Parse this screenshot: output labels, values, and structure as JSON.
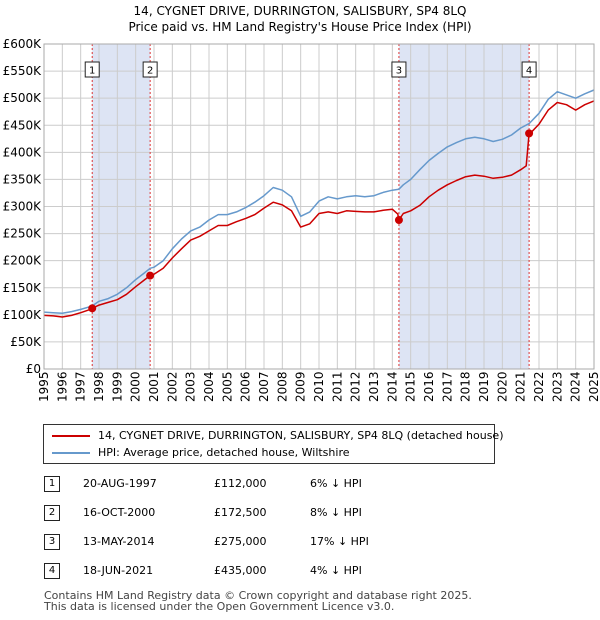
{
  "title": {
    "line1": "14, CYGNET DRIVE, DURRINGTON, SALISBURY, SP4 8LQ",
    "line2": "Price paid vs. HM Land Registry's House Price Index (HPI)"
  },
  "colors": {
    "property": "#cc0000",
    "hpi": "#6699cc",
    "shade": "#dde4f4",
    "vline": "#dd3333",
    "grid": "#cccccc"
  },
  "legend": {
    "property_label": "14, CYGNET DRIVE, DURRINGTON, SALISBURY, SP4 8LQ (detached house)",
    "hpi_label": "HPI: Average price, detached house, Wiltshire"
  },
  "transactions": [
    {
      "num": "1",
      "date": "20-AUG-1997",
      "price": "£112,000",
      "hpi": "6% ↓ HPI"
    },
    {
      "num": "2",
      "date": "16-OCT-2000",
      "price": "£172,500",
      "hpi": "8% ↓ HPI"
    },
    {
      "num": "3",
      "date": "13-MAY-2014",
      "price": "£275,000",
      "hpi": "17% ↓ HPI"
    },
    {
      "num": "4",
      "date": "18-JUN-2021",
      "price": "£435,000",
      "hpi": "4% ↓ HPI"
    }
  ],
  "footer": {
    "line1": "Contains HM Land Registry data © Crown copyright and database right 2025.",
    "line2": "This data is licensed under the Open Government Licence v3.0."
  },
  "chart_data": {
    "type": "line",
    "title": "14, CYGNET DRIVE, DURRINGTON, SALISBURY, SP4 8LQ — Price paid vs. HM Land Registry's House Price Index (HPI)",
    "xlim": [
      1995,
      2025
    ],
    "ylim": [
      0,
      600000
    ],
    "x_ticks": [
      "1995",
      "1996",
      "1997",
      "1998",
      "1999",
      "2000",
      "2001",
      "2002",
      "2003",
      "2004",
      "2005",
      "2006",
      "2007",
      "2008",
      "2009",
      "2010",
      "2011",
      "2012",
      "2013",
      "2014",
      "2015",
      "2016",
      "2017",
      "2018",
      "2019",
      "2020",
      "2021",
      "2022",
      "2023",
      "2024",
      "2025"
    ],
    "y_ticks": [
      {
        "value": 0,
        "label": "£0"
      },
      {
        "value": 50000,
        "label": "£50K"
      },
      {
        "value": 100000,
        "label": "£100K"
      },
      {
        "value": 150000,
        "label": "£150K"
      },
      {
        "value": 200000,
        "label": "£200K"
      },
      {
        "value": 250000,
        "label": "£250K"
      },
      {
        "value": 300000,
        "label": "£300K"
      },
      {
        "value": 350000,
        "label": "£350K"
      },
      {
        "value": 400000,
        "label": "£400K"
      },
      {
        "value": 450000,
        "label": "£450K"
      },
      {
        "value": 500000,
        "label": "£500K"
      },
      {
        "value": 550000,
        "label": "£550K"
      },
      {
        "value": 600000,
        "label": "£600K"
      }
    ],
    "shaded_ranges": [
      [
        1997.63,
        2000.79
      ],
      [
        2014.36,
        2021.46
      ]
    ],
    "sales": [
      {
        "label": "1",
        "x": 1997.63,
        "y": 112000
      },
      {
        "label": "2",
        "x": 2000.79,
        "y": 172500
      },
      {
        "label": "3",
        "x": 2014.36,
        "y": 275000
      },
      {
        "label": "4",
        "x": 2021.46,
        "y": 435000
      }
    ],
    "series": [
      {
        "name": "14, CYGNET DRIVE, DURRINGTON, SALISBURY, SP4 8LQ (detached house)",
        "points": [
          [
            1995,
            99000
          ],
          [
            1995.5,
            98000
          ],
          [
            1996,
            96000
          ],
          [
            1996.5,
            99000
          ],
          [
            1997,
            104000
          ],
          [
            1997.6,
            111000
          ],
          [
            1997.63,
            112000
          ],
          [
            1998,
            118000
          ],
          [
            1998.5,
            123000
          ],
          [
            1999,
            128000
          ],
          [
            1999.5,
            138000
          ],
          [
            2000,
            152000
          ],
          [
            2000.5,
            165000
          ],
          [
            2000.79,
            172500
          ],
          [
            2001,
            175000
          ],
          [
            2001.5,
            186000
          ],
          [
            2002,
            205000
          ],
          [
            2002.5,
            222000
          ],
          [
            2003,
            238000
          ],
          [
            2003.5,
            245000
          ],
          [
            2004,
            255000
          ],
          [
            2004.5,
            265000
          ],
          [
            2005,
            265000
          ],
          [
            2005.5,
            272000
          ],
          [
            2006,
            278000
          ],
          [
            2006.5,
            285000
          ],
          [
            2007,
            297000
          ],
          [
            2007.5,
            308000
          ],
          [
            2008,
            303000
          ],
          [
            2008.5,
            292000
          ],
          [
            2009,
            262000
          ],
          [
            2009.5,
            268000
          ],
          [
            2010,
            287000
          ],
          [
            2010.5,
            290000
          ],
          [
            2011,
            287000
          ],
          [
            2011.5,
            292000
          ],
          [
            2012,
            291000
          ],
          [
            2012.5,
            290000
          ],
          [
            2013,
            290000
          ],
          [
            2013.5,
            293000
          ],
          [
            2014,
            295000
          ],
          [
            2014.3,
            286000
          ],
          [
            2014.36,
            275000
          ],
          [
            2014.6,
            287000
          ],
          [
            2015,
            292000
          ],
          [
            2015.5,
            302000
          ],
          [
            2016,
            318000
          ],
          [
            2016.5,
            330000
          ],
          [
            2017,
            340000
          ],
          [
            2017.5,
            348000
          ],
          [
            2018,
            355000
          ],
          [
            2018.5,
            358000
          ],
          [
            2019,
            356000
          ],
          [
            2019.5,
            352000
          ],
          [
            2020,
            354000
          ],
          [
            2020.5,
            358000
          ],
          [
            2021,
            368000
          ],
          [
            2021.3,
            375000
          ],
          [
            2021.46,
            435000
          ],
          [
            2021.6,
            438000
          ],
          [
            2022,
            452000
          ],
          [
            2022.5,
            478000
          ],
          [
            2023,
            492000
          ],
          [
            2023.5,
            488000
          ],
          [
            2024,
            478000
          ],
          [
            2024.5,
            488000
          ],
          [
            2025,
            495000
          ]
        ]
      },
      {
        "name": "HPI: Average price, detached house, Wiltshire",
        "points": [
          [
            1995,
            105000
          ],
          [
            1995.5,
            104000
          ],
          [
            1996,
            103000
          ],
          [
            1996.5,
            106000
          ],
          [
            1997,
            110000
          ],
          [
            1997.6,
            116000
          ],
          [
            1998,
            125000
          ],
          [
            1998.5,
            130000
          ],
          [
            1999,
            138000
          ],
          [
            1999.5,
            150000
          ],
          [
            2000,
            165000
          ],
          [
            2000.5,
            178000
          ],
          [
            2000.79,
            186000
          ],
          [
            2001,
            188000
          ],
          [
            2001.5,
            200000
          ],
          [
            2002,
            222000
          ],
          [
            2002.5,
            240000
          ],
          [
            2003,
            255000
          ],
          [
            2003.5,
            262000
          ],
          [
            2004,
            275000
          ],
          [
            2004.5,
            285000
          ],
          [
            2005,
            285000
          ],
          [
            2005.5,
            290000
          ],
          [
            2006,
            298000
          ],
          [
            2006.5,
            308000
          ],
          [
            2007,
            320000
          ],
          [
            2007.5,
            335000
          ],
          [
            2008,
            330000
          ],
          [
            2008.5,
            318000
          ],
          [
            2009,
            282000
          ],
          [
            2009.5,
            290000
          ],
          [
            2010,
            310000
          ],
          [
            2010.5,
            318000
          ],
          [
            2011,
            314000
          ],
          [
            2011.5,
            318000
          ],
          [
            2012,
            320000
          ],
          [
            2012.5,
            318000
          ],
          [
            2013,
            320000
          ],
          [
            2013.5,
            326000
          ],
          [
            2014,
            330000
          ],
          [
            2014.36,
            332000
          ],
          [
            2014.6,
            340000
          ],
          [
            2015,
            350000
          ],
          [
            2015.5,
            368000
          ],
          [
            2016,
            385000
          ],
          [
            2016.5,
            398000
          ],
          [
            2017,
            410000
          ],
          [
            2017.5,
            418000
          ],
          [
            2018,
            425000
          ],
          [
            2018.5,
            428000
          ],
          [
            2019,
            425000
          ],
          [
            2019.5,
            420000
          ],
          [
            2020,
            424000
          ],
          [
            2020.5,
            432000
          ],
          [
            2021,
            445000
          ],
          [
            2021.46,
            453000
          ],
          [
            2022,
            472000
          ],
          [
            2022.5,
            498000
          ],
          [
            2023,
            512000
          ],
          [
            2023.5,
            506000
          ],
          [
            2024,
            500000
          ],
          [
            2024.5,
            508000
          ],
          [
            2025,
            515000
          ]
        ]
      }
    ]
  }
}
